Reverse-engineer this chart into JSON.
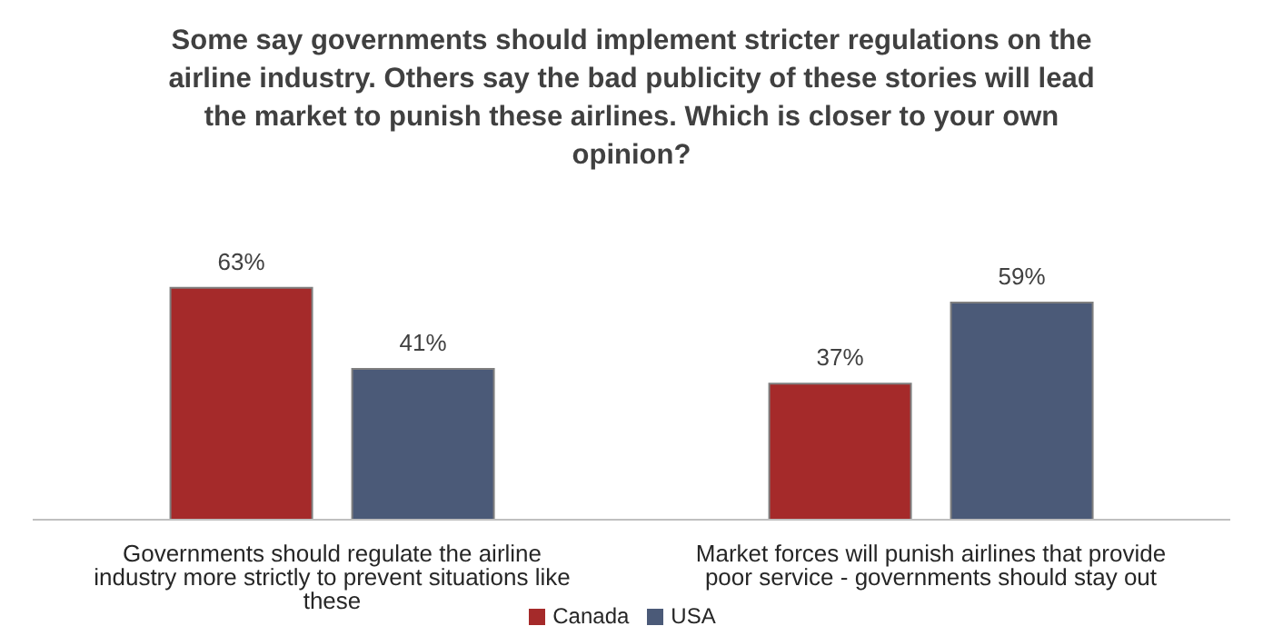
{
  "chart_data": {
    "type": "bar",
    "title": "Some say governments should implement stricter regulations on the airline industry. Others say the bad publicity of these stories will lead the market to punish these airlines.  Which is closer to your own opinion?",
    "categories": [
      "Governments should regulate the airline industry more strictly to prevent situations like these",
      "Market forces will punish airlines that provide poor service - governments should stay out"
    ],
    "series": [
      {
        "name": "Canada",
        "color": "#a52a2a",
        "values": [
          63,
          37
        ],
        "value_labels": [
          "63%",
          "37%"
        ]
      },
      {
        "name": "USA",
        "color": "#4b5a78",
        "values": [
          41,
          59
        ],
        "value_labels": [
          "41%",
          "59%"
        ]
      }
    ],
    "legend": "bottom",
    "grid": false
  }
}
